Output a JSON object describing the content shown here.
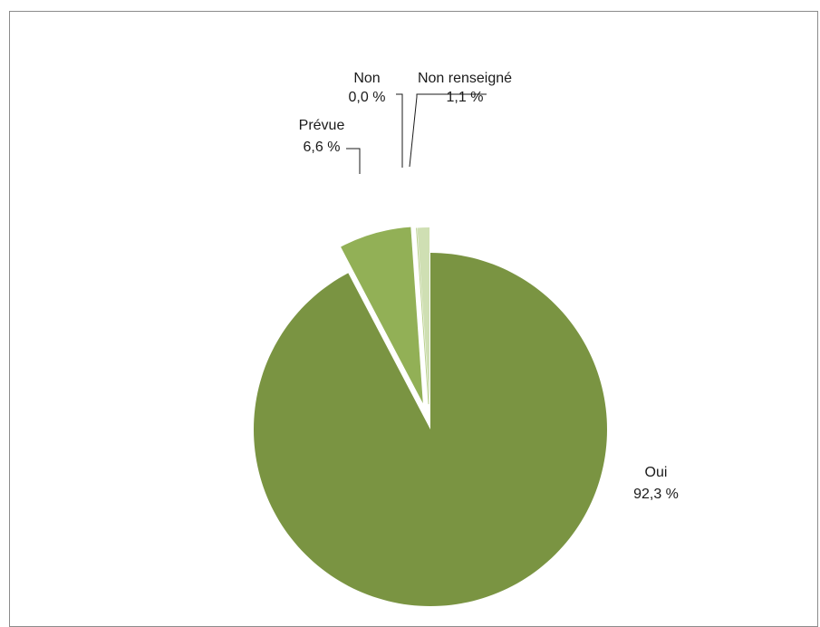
{
  "chart_data": {
    "type": "pie",
    "title": "",
    "slices": [
      {
        "label": "Oui",
        "value": 92.3,
        "value_label": "92,3 %",
        "color": "#7a9442",
        "exploded": false
      },
      {
        "label": "Prévue",
        "value": 6.6,
        "value_label": "6,6 %",
        "color": "#92b056",
        "exploded": true
      },
      {
        "label": "Non",
        "value": 0.0,
        "value_label": "0,0 %",
        "color": "#b9cf8e",
        "exploded": true
      },
      {
        "label": "Non renseigné",
        "value": 1.1,
        "value_label": "1,1 %",
        "color": "#cfdfb3",
        "exploded": true
      }
    ],
    "start_angle": "12 o'clock",
    "direction": "clockwise",
    "legend": "none"
  }
}
